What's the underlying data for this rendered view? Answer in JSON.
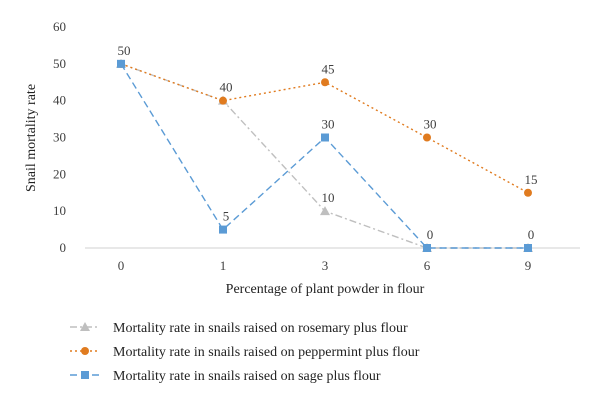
{
  "chart_data": {
    "type": "line",
    "categories": [
      "0",
      "1",
      "3",
      "6",
      "9"
    ],
    "xlabel": "Percentage of plant powder in flour",
    "ylabel": "Snail mortality rate",
    "ylim": [
      0,
      60
    ],
    "yticks": [
      0,
      10,
      20,
      30,
      40,
      50,
      60
    ],
    "grid": false,
    "legend_position": "bottom",
    "series": [
      {
        "name": "Mortality rate in snails raised on rosemary plus flour",
        "values": [
          50,
          40,
          10,
          0,
          0
        ],
        "labels": [
          "",
          "",
          "10",
          "",
          ""
        ],
        "color": "#bfbfbf",
        "marker": "triangle",
        "dash": "dash-dot"
      },
      {
        "name": "Mortality rate in snails raised on peppermint plus flour",
        "values": [
          50,
          40,
          45,
          30,
          15
        ],
        "labels": [
          "50",
          "40",
          "45",
          "30",
          "15"
        ],
        "color": "#e07b1f",
        "marker": "circle",
        "dash": "dotted"
      },
      {
        "name": "Mortality rate in snails raised on sage plus flour",
        "values": [
          50,
          5,
          30,
          0,
          0
        ],
        "labels": [
          "",
          "5",
          "30",
          "0",
          "0"
        ],
        "color": "#5b9bd5",
        "marker": "square",
        "dash": "dashed"
      }
    ]
  }
}
